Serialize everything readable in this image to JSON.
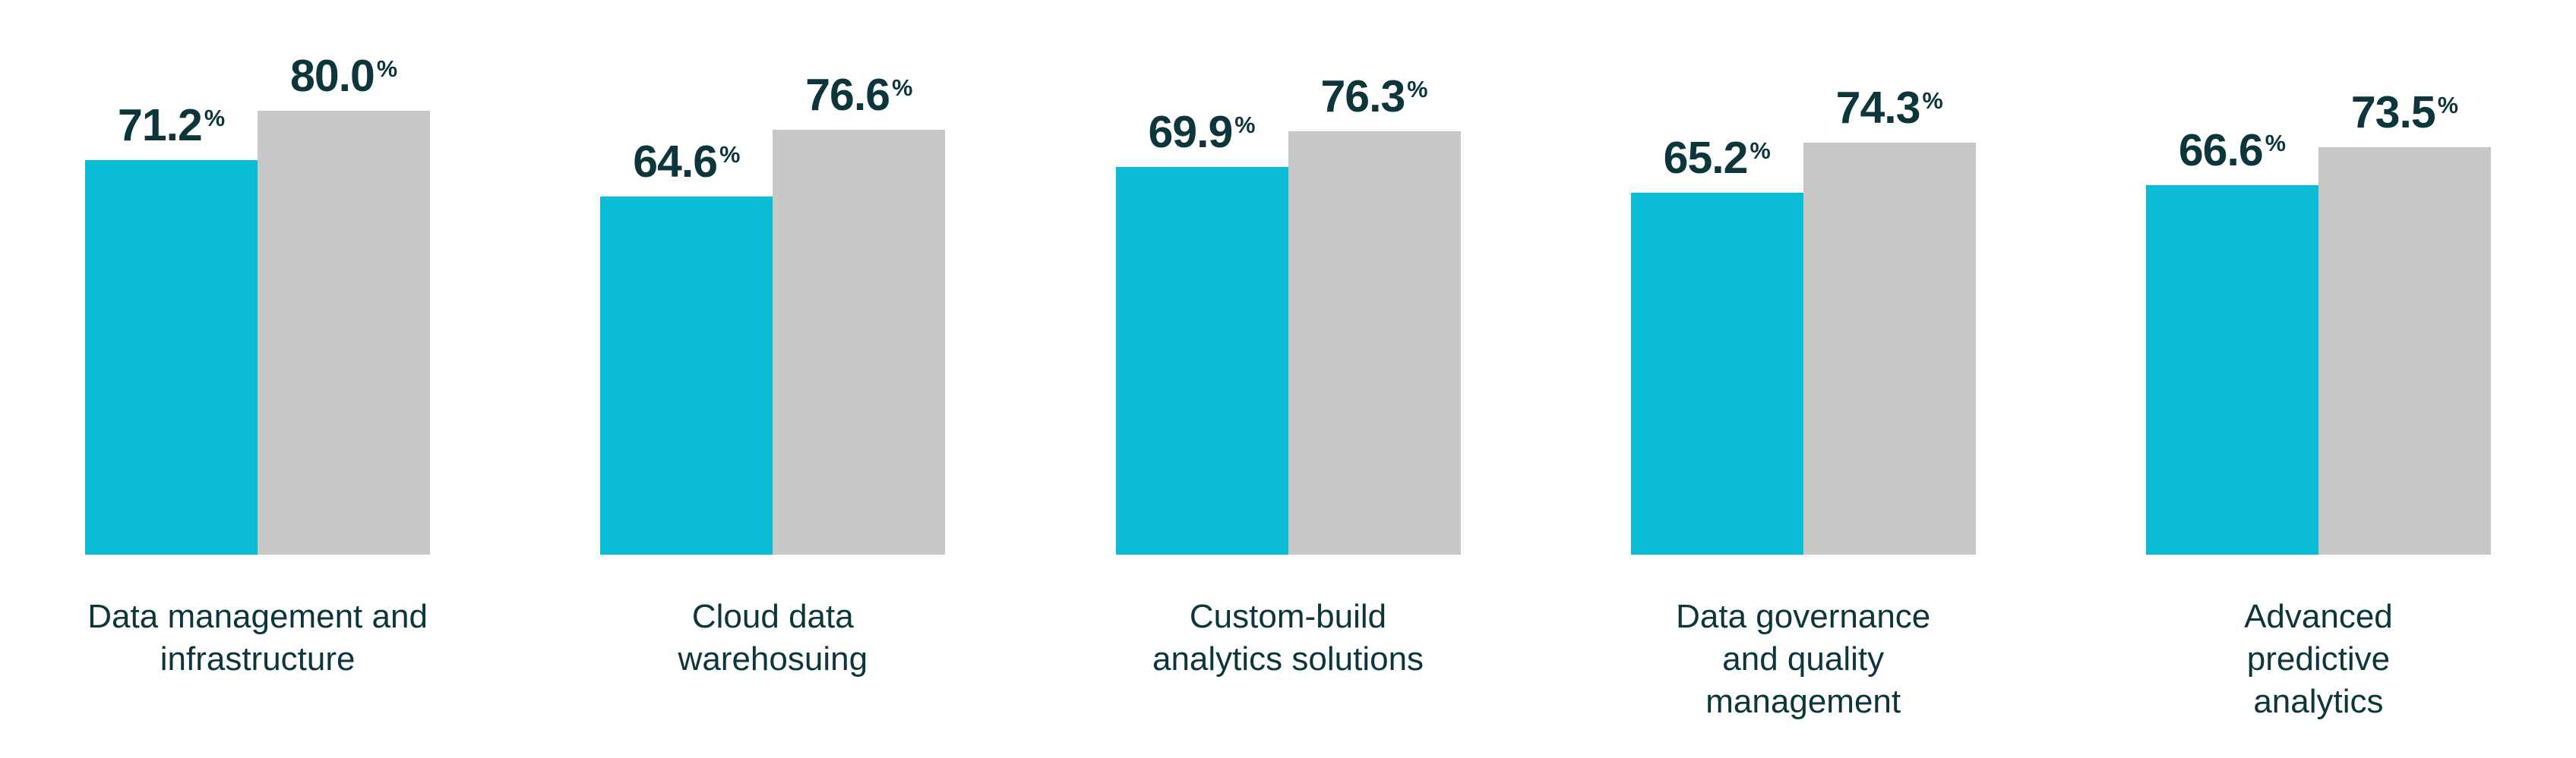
{
  "style": {
    "accent_color": "#0ABCD4",
    "neutral_color": "#C7C7C7",
    "text_color": "#0C353C",
    "background_color": "#FFFFFF"
  },
  "chart_data": {
    "type": "bar",
    "title": "",
    "xlabel": "",
    "ylabel": "",
    "unit": "%",
    "value_label_suffix": "%",
    "ylim": [
      0,
      100
    ],
    "grid": false,
    "legend": false,
    "axes_visible": false,
    "categories": [
      "Data management and infrastructure",
      "Cloud data warehosuing",
      "Custom-build analytics solutions",
      "Data governance and quality management",
      "Advanced predictive analytics"
    ],
    "category_display_lines": [
      "Data management and\ninfrastructure",
      "Cloud data\nwarehosuing",
      "Custom-build\nanalytics solutions",
      "Data governance\nand quality\nmanagement",
      "Advanced\npredictive\nanalytics"
    ],
    "series": [
      {
        "name": "teal",
        "color": "#0ABCD4",
        "values": [
          71.2,
          64.6,
          69.9,
          65.2,
          66.6
        ],
        "value_labels": [
          "71.2",
          "64.6",
          "69.9",
          "65.2",
          "66.6"
        ]
      },
      {
        "name": "gray",
        "color": "#C7C7C7",
        "values": [
          80.0,
          76.6,
          76.3,
          74.3,
          73.5
        ],
        "value_labels": [
          "80.0",
          "76.6",
          "76.3",
          "74.3",
          "73.5"
        ]
      }
    ]
  }
}
